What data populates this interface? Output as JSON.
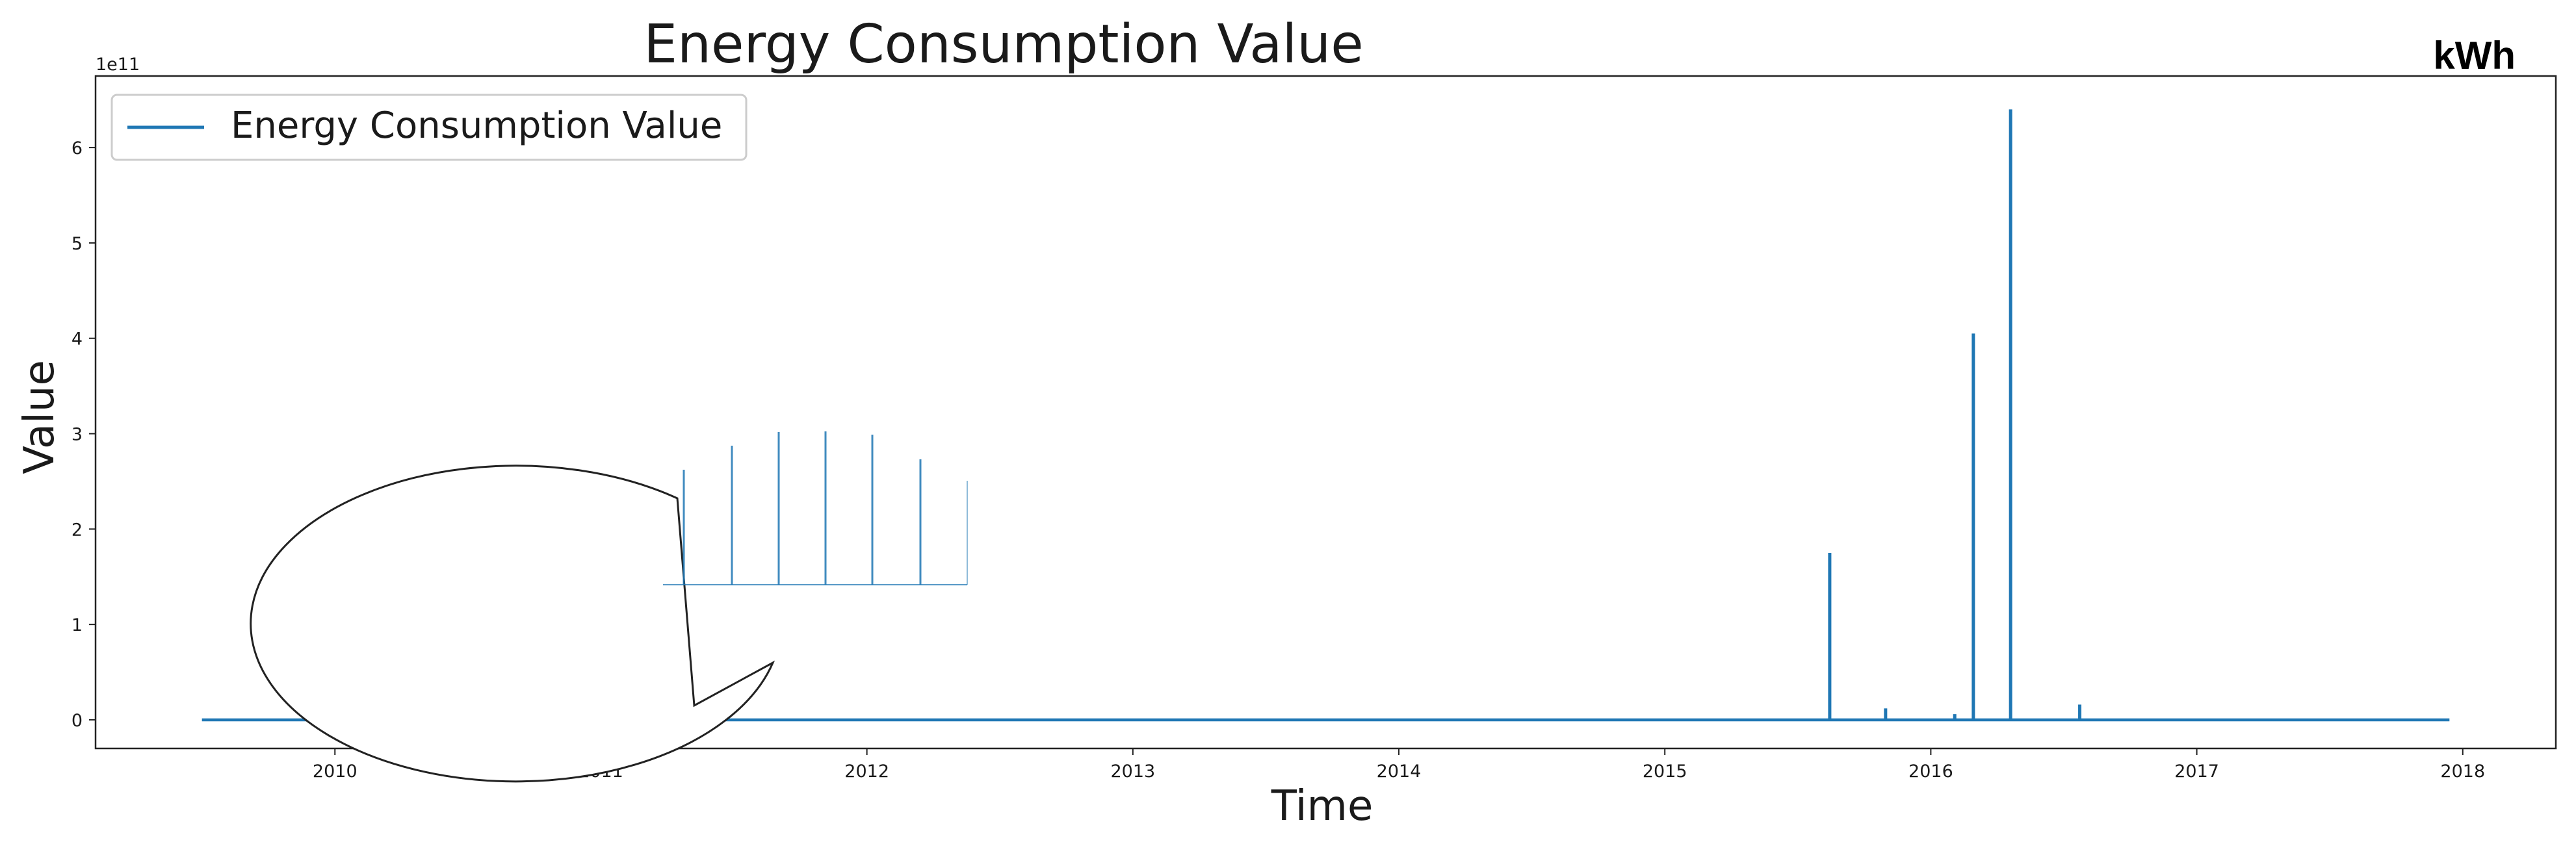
{
  "chart_data": {
    "type": "line",
    "title": "Energy Consumption Value",
    "unit": "kWh",
    "xlabel": "Time",
    "ylabel": "Value",
    "y_multiplier_label": "1e11",
    "x_ticks": [
      "2010",
      "2011",
      "2012",
      "2013",
      "2014",
      "2015",
      "2016",
      "2017",
      "2018"
    ],
    "y_ticks": [
      "0",
      "1",
      "2",
      "3",
      "4",
      "5",
      "6"
    ],
    "xlim": [
      2009.1,
      2018.35
    ],
    "ylim": [
      -0.3,
      6.75
    ],
    "grid": false,
    "legend_position": "top-left",
    "series": [
      {
        "name": "Energy Consumption Value",
        "color": "#1f77b4",
        "x_start": 2009.5,
        "x_end": 2017.95,
        "baseline": 0.0,
        "spikes": [
          {
            "x": 2015.62,
            "y": 1.75
          },
          {
            "x": 2015.83,
            "y": 0.12
          },
          {
            "x": 2016.09,
            "y": 0.06
          },
          {
            "x": 2016.16,
            "y": 4.05
          },
          {
            "x": 2016.3,
            "y": 6.4
          },
          {
            "x": 2016.56,
            "y": 0.16
          }
        ]
      }
    ]
  }
}
